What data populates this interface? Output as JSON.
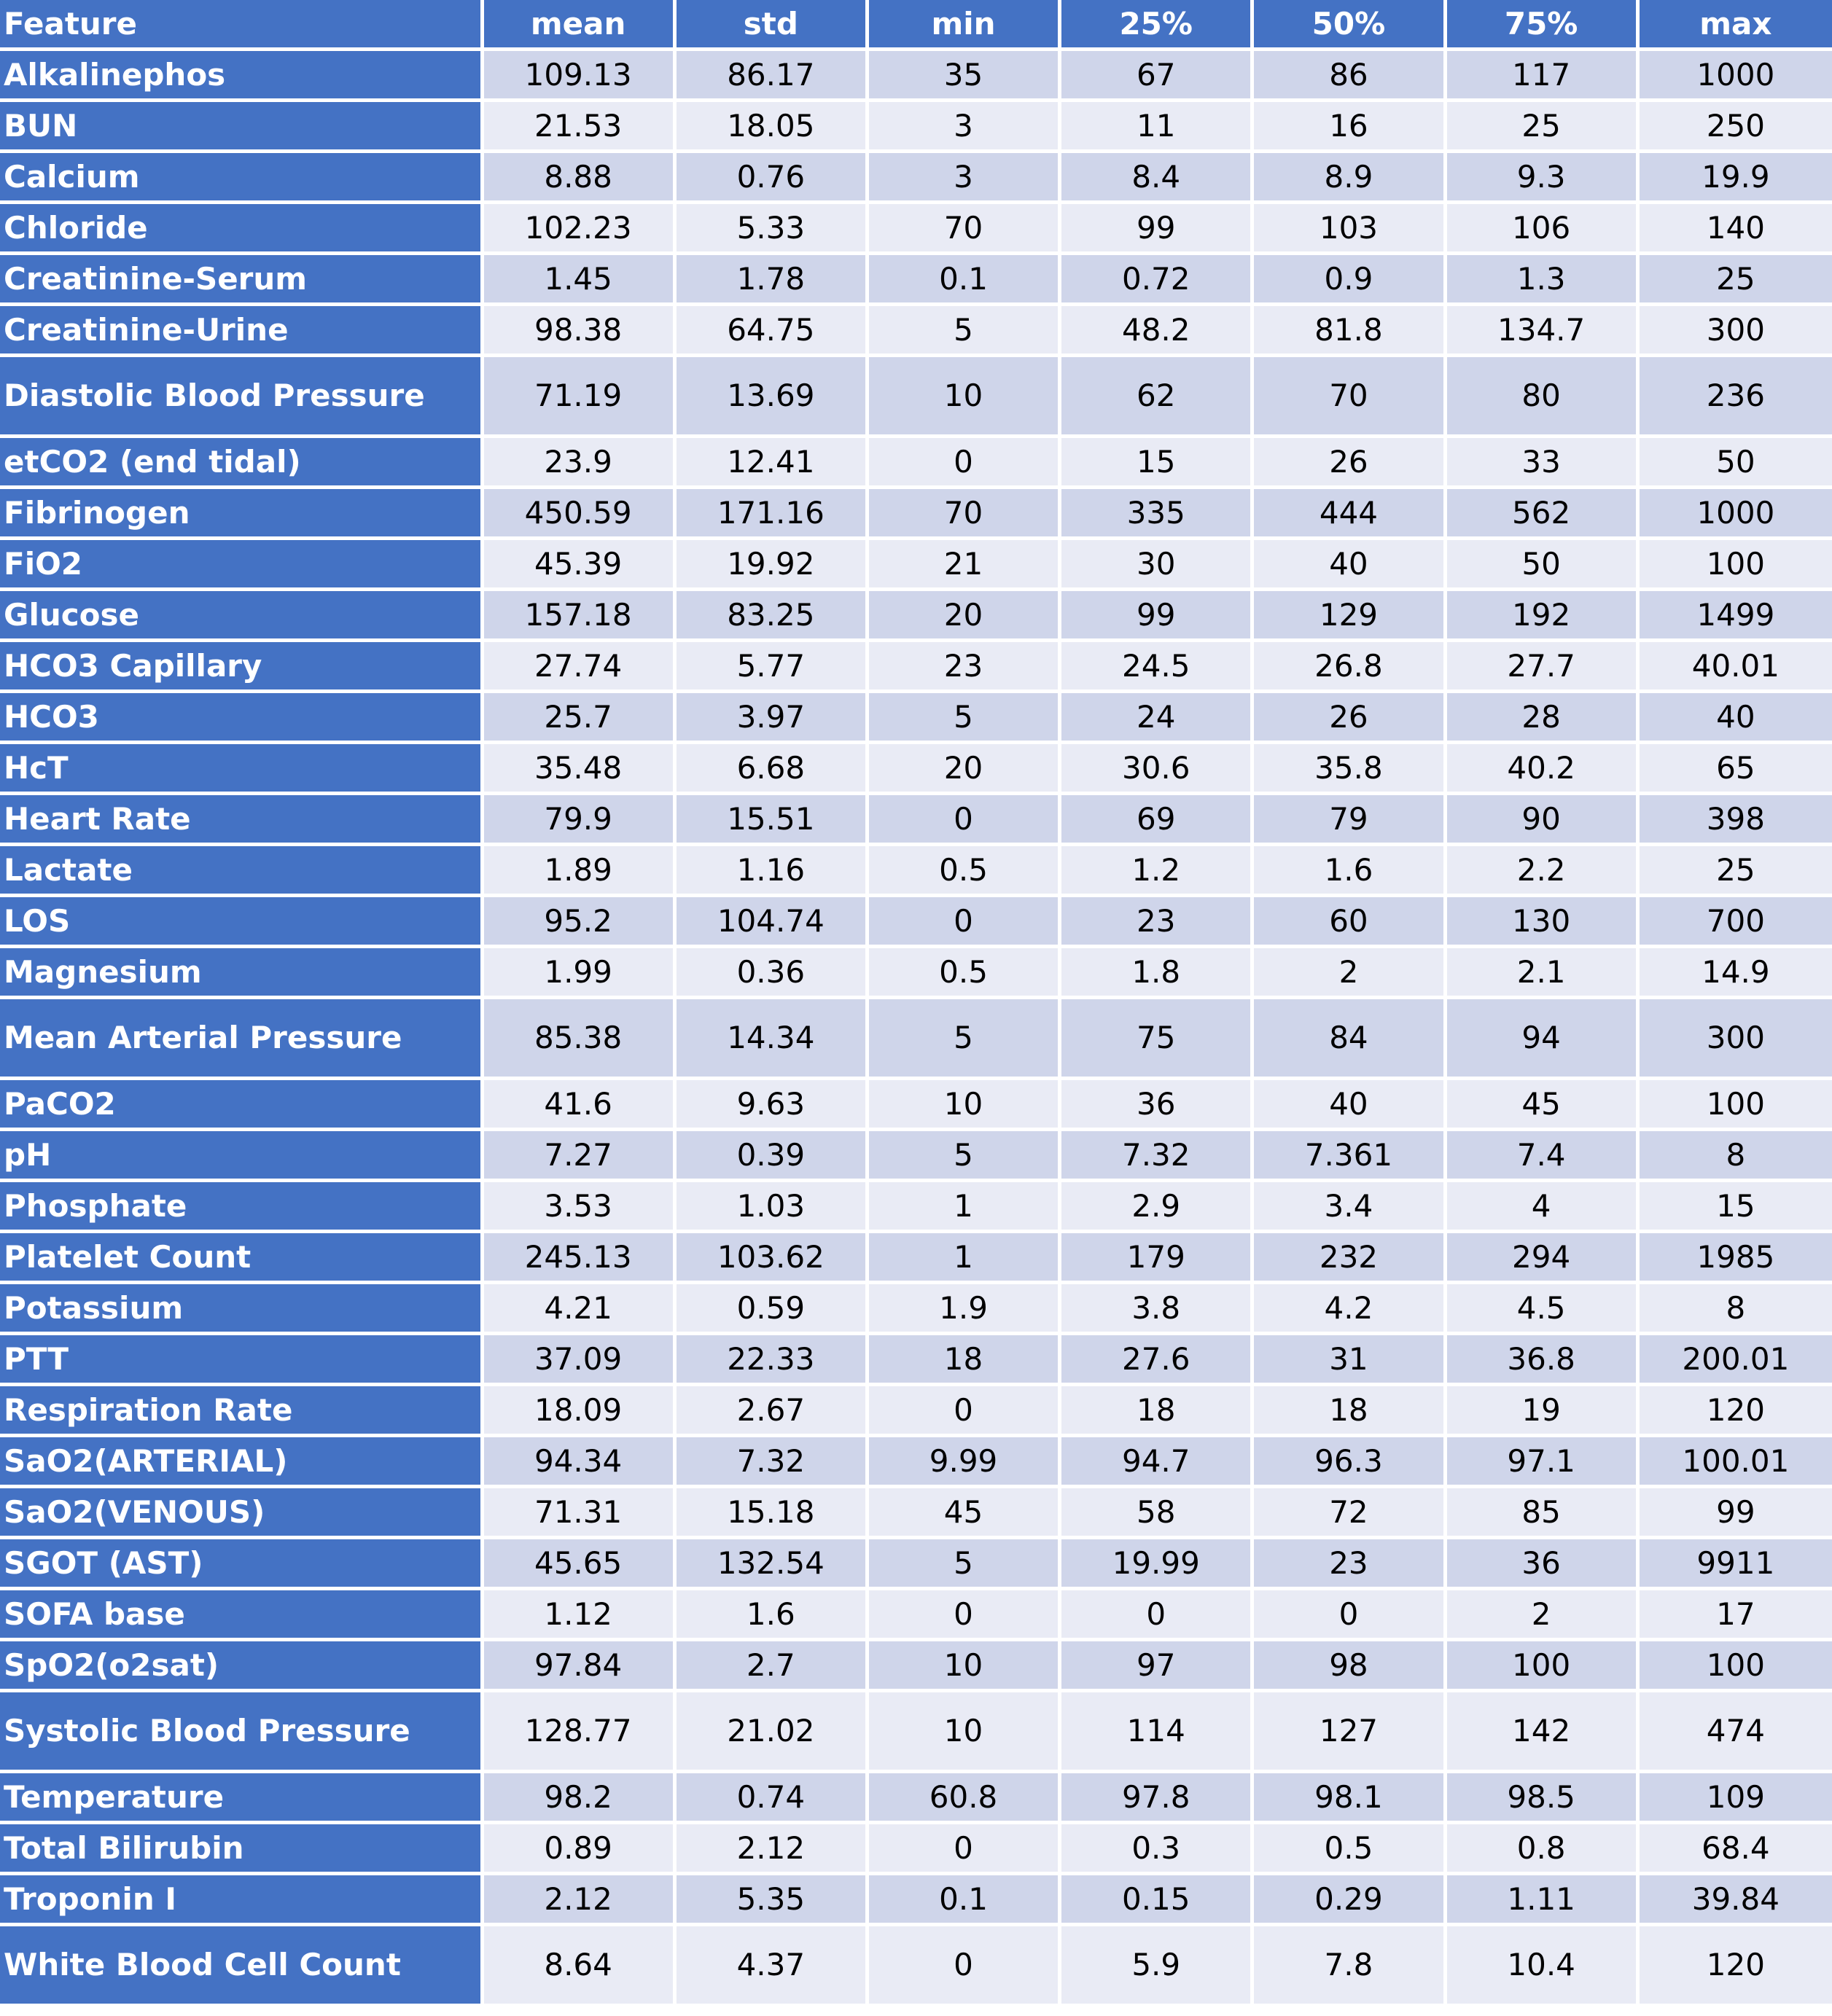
{
  "columns": [
    "Feature",
    "mean",
    "std",
    "min",
    "25%",
    "50%",
    "75%",
    "max"
  ],
  "rows": [
    {
      "feature": "Alkalinephos",
      "values": [
        "109.13",
        "86.17",
        "35",
        "67",
        "86",
        "117",
        "1000"
      ]
    },
    {
      "feature": "BUN",
      "values": [
        "21.53",
        "18.05",
        "3",
        "11",
        "16",
        "25",
        "250"
      ]
    },
    {
      "feature": "Calcium",
      "values": [
        "8.88",
        "0.76",
        "3",
        "8.4",
        "8.9",
        "9.3",
        "19.9"
      ]
    },
    {
      "feature": "Chloride",
      "values": [
        "102.23",
        "5.33",
        "70",
        "99",
        "103",
        "106",
        "140"
      ]
    },
    {
      "feature": "Creatinine-Serum",
      "values": [
        "1.45",
        "1.78",
        "0.1",
        "0.72",
        "0.9",
        "1.3",
        "25"
      ]
    },
    {
      "feature": "Creatinine-Urine",
      "values": [
        "98.38",
        "64.75",
        "5",
        "48.2",
        "81.8",
        "134.7",
        "300"
      ]
    },
    {
      "feature": "Diastolic Blood Pressure",
      "values": [
        "71.19",
        "13.69",
        "10",
        "62",
        "70",
        "80",
        "236"
      ]
    },
    {
      "feature": "etCO2 (end tidal)",
      "values": [
        "23.9",
        "12.41",
        "0",
        "15",
        "26",
        "33",
        "50"
      ]
    },
    {
      "feature": "Fibrinogen",
      "values": [
        "450.59",
        "171.16",
        "70",
        "335",
        "444",
        "562",
        "1000"
      ]
    },
    {
      "feature": "FiO2",
      "values": [
        "45.39",
        "19.92",
        "21",
        "30",
        "40",
        "50",
        "100"
      ]
    },
    {
      "feature": "Glucose",
      "values": [
        "157.18",
        "83.25",
        "20",
        "99",
        "129",
        "192",
        "1499"
      ]
    },
    {
      "feature": "HCO3 Capillary",
      "values": [
        "27.74",
        "5.77",
        "23",
        "24.5",
        "26.8",
        "27.7",
        "40.01"
      ]
    },
    {
      "feature": "HCO3",
      "values": [
        "25.7",
        "3.97",
        "5",
        "24",
        "26",
        "28",
        "40"
      ]
    },
    {
      "feature": "HcT",
      "values": [
        "35.48",
        "6.68",
        "20",
        "30.6",
        "35.8",
        "40.2",
        "65"
      ]
    },
    {
      "feature": "Heart Rate",
      "values": [
        "79.9",
        "15.51",
        "0",
        "69",
        "79",
        "90",
        "398"
      ]
    },
    {
      "feature": "Lactate",
      "values": [
        "1.89",
        "1.16",
        "0.5",
        "1.2",
        "1.6",
        "2.2",
        "25"
      ]
    },
    {
      "feature": "LOS",
      "values": [
        "95.2",
        "104.74",
        "0",
        "23",
        "60",
        "130",
        "700"
      ]
    },
    {
      "feature": "Magnesium",
      "values": [
        "1.99",
        "0.36",
        "0.5",
        "1.8",
        "2",
        "2.1",
        "14.9"
      ]
    },
    {
      "feature": "Mean Arterial Pressure",
      "values": [
        "85.38",
        "14.34",
        "5",
        "75",
        "84",
        "94",
        "300"
      ]
    },
    {
      "feature": "PaCO2",
      "values": [
        "41.6",
        "9.63",
        "10",
        "36",
        "40",
        "45",
        "100"
      ]
    },
    {
      "feature": "pH",
      "values": [
        "7.27",
        "0.39",
        "5",
        "7.32",
        "7.361",
        "7.4",
        "8"
      ]
    },
    {
      "feature": "Phosphate",
      "values": [
        "3.53",
        "1.03",
        "1",
        "2.9",
        "3.4",
        "4",
        "15"
      ]
    },
    {
      "feature": "Platelet Count",
      "values": [
        "245.13",
        "103.62",
        "1",
        "179",
        "232",
        "294",
        "1985"
      ]
    },
    {
      "feature": "Potassium",
      "values": [
        "4.21",
        "0.59",
        "1.9",
        "3.8",
        "4.2",
        "4.5",
        "8"
      ]
    },
    {
      "feature": "PTT",
      "values": [
        "37.09",
        "22.33",
        "18",
        "27.6",
        "31",
        "36.8",
        "200.01"
      ]
    },
    {
      "feature": "Respiration Rate",
      "values": [
        "18.09",
        "2.67",
        "0",
        "18",
        "18",
        "19",
        "120"
      ]
    },
    {
      "feature": "SaO2(ARTERIAL)",
      "values": [
        "94.34",
        "7.32",
        "9.99",
        "94.7",
        "96.3",
        "97.1",
        "100.01"
      ]
    },
    {
      "feature": "SaO2(VENOUS)",
      "values": [
        "71.31",
        "15.18",
        "45",
        "58",
        "72",
        "85",
        "99"
      ]
    },
    {
      "feature": "SGOT (AST)",
      "values": [
        "45.65",
        "132.54",
        "5",
        "19.99",
        "23",
        "36",
        "9911"
      ]
    },
    {
      "feature": "SOFA base",
      "values": [
        "1.12",
        "1.6",
        "0",
        "0",
        "0",
        "2",
        "17"
      ]
    },
    {
      "feature": "SpO2(o2sat)",
      "values": [
        "97.84",
        "2.7",
        "10",
        "97",
        "98",
        "100",
        "100"
      ]
    },
    {
      "feature": "Systolic Blood Pressure",
      "values": [
        "128.77",
        "21.02",
        "10",
        "114",
        "127",
        "142",
        "474"
      ]
    },
    {
      "feature": "Temperature",
      "values": [
        "98.2",
        "0.74",
        "60.8",
        "97.8",
        "98.1",
        "98.5",
        "109"
      ]
    },
    {
      "feature": "Total Bilirubin",
      "values": [
        "0.89",
        "2.12",
        "0",
        "0.3",
        "0.5",
        "0.8",
        "68.4"
      ]
    },
    {
      "feature": "Troponin I",
      "values": [
        "2.12",
        "5.35",
        "0.1",
        "0.15",
        "0.29",
        "1.11",
        "39.84"
      ]
    },
    {
      "feature": "White Blood Cell Count",
      "values": [
        "8.64",
        "4.37",
        "0",
        "5.9",
        "7.8",
        "10.4",
        "120"
      ]
    }
  ]
}
